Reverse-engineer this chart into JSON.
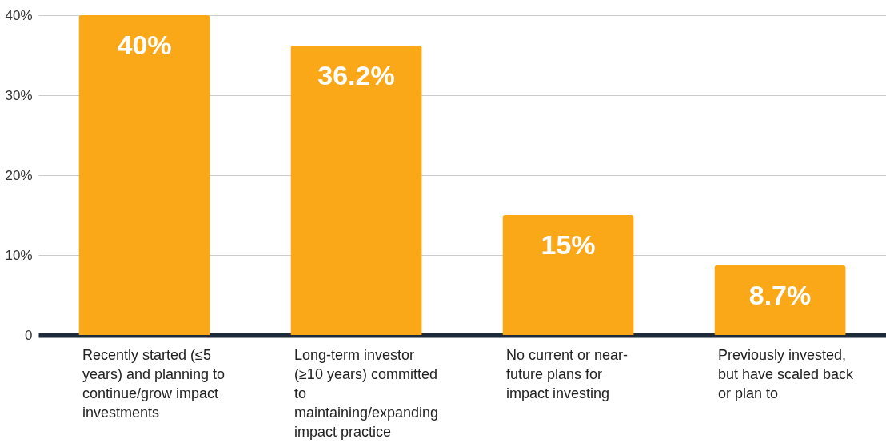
{
  "chart_data": {
    "type": "bar",
    "categories": [
      "Recently started (≤5 years) and planning to continue/grow impact investments",
      "Long-term investor (≥10 years) committed to maintaining/expanding impact practice",
      "No current or near-future plans for impact investing",
      "Previously invested, but have scaled back or plan to"
    ],
    "values": [
      40,
      36.2,
      15,
      8.7
    ],
    "value_labels": [
      "40%",
      "36.2%",
      "15%",
      "8.7%"
    ],
    "color": "#fba818",
    "ylim": [
      0,
      40
    ],
    "yticks": [
      0,
      {
        "value": 10,
        "label": "10%"
      },
      {
        "value": 20,
        "label": "20%"
      },
      {
        "value": 30,
        "label": "30%"
      },
      {
        "value": 40,
        "label": "40%"
      }
    ],
    "grid": "y"
  }
}
